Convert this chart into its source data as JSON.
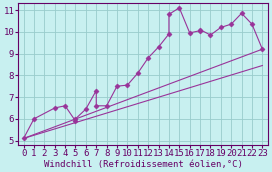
{
  "xlabel": "Windchill (Refroidissement éolien,°C)",
  "bg_color": "#c8f0f0",
  "line_color": "#993399",
  "xlim": [
    -0.5,
    23.5
  ],
  "ylim": [
    4.8,
    11.3
  ],
  "xticks": [
    0,
    1,
    2,
    3,
    4,
    5,
    6,
    7,
    8,
    9,
    10,
    11,
    12,
    13,
    14,
    15,
    16,
    17,
    18,
    19,
    20,
    21,
    22,
    23
  ],
  "yticks": [
    5,
    6,
    7,
    8,
    9,
    10,
    11
  ],
  "grid_color": "#99cccc",
  "series1_x": [
    0,
    1,
    3,
    4,
    5,
    5,
    6,
    7,
    7,
    8,
    9,
    10,
    11,
    12,
    13,
    14,
    14,
    15,
    16,
    17,
    17,
    18,
    19,
    20,
    21,
    22,
    23
  ],
  "series1_y": [
    5.1,
    6.0,
    6.5,
    6.6,
    5.9,
    6.0,
    6.45,
    7.3,
    6.6,
    6.6,
    7.5,
    7.55,
    8.1,
    8.8,
    9.3,
    9.9,
    10.8,
    11.1,
    9.95,
    10.05,
    10.1,
    9.85,
    10.2,
    10.35,
    10.85,
    10.35,
    9.2
  ],
  "series2_x": [
    0,
    23
  ],
  "series2_y": [
    5.1,
    9.2
  ],
  "series3_x": [
    0,
    23
  ],
  "series3_y": [
    5.1,
    8.45
  ],
  "fontsize_xlabel": 6.5,
  "fontsize_ticks": 6.5
}
